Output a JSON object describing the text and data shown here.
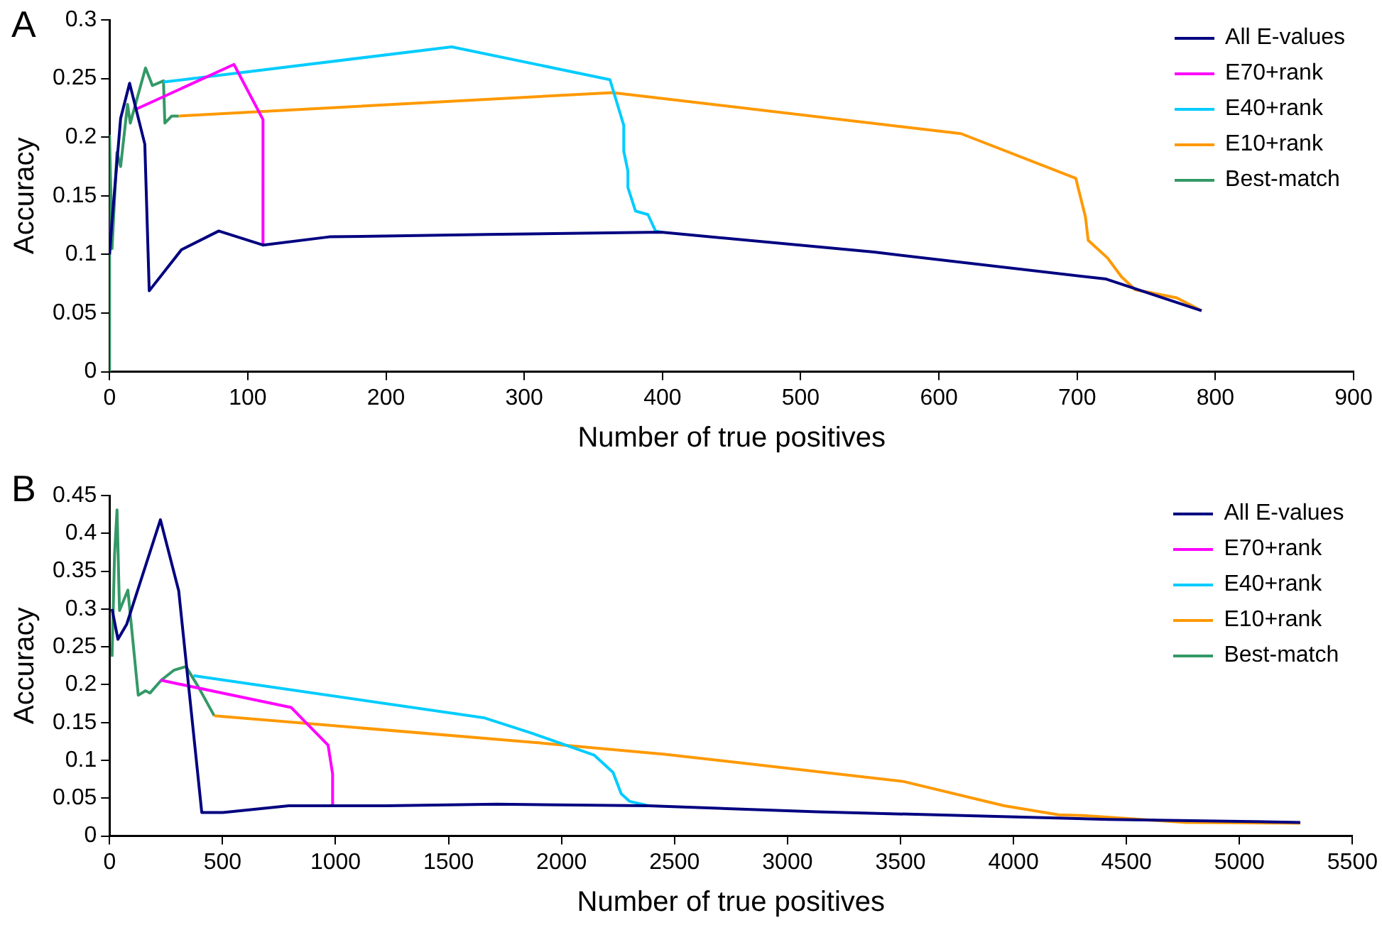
{
  "chart_data": [
    {
      "type": "line",
      "xlabel": "Number of true positives",
      "ylabel": "Accuracy",
      "annotations": [
        "A"
      ],
      "legend": "top right",
      "grid": false,
      "marker": "none",
      "xlim": [
        0,
        900
      ],
      "xticks": [
        0,
        100,
        200,
        300,
        400,
        500,
        600,
        700,
        800,
        900
      ],
      "ylim": [
        0,
        0.3
      ],
      "yticks": [
        0,
        0.05,
        0.1,
        0.15,
        0.2,
        0.25,
        0.3
      ],
      "series": [
        {
          "name": "All E-values",
          "color": "#000080",
          "x": [
            0,
            1.8,
            8,
            14.5,
            25.5,
            28.7,
            52,
            79,
            111,
            159,
            273,
            399,
            553,
            721,
            790
          ],
          "values": [
            0.1,
            0.129,
            0.216,
            0.246,
            0.194,
            0.069,
            0.104,
            0.12,
            0.108,
            0.115,
            0.117,
            0.119,
            0.102,
            0.079,
            0.052
          ]
        },
        {
          "name": "E70+rank",
          "color": "#ff00ff",
          "x": [
            19.5,
            90,
            111,
            111
          ],
          "values": [
            0.224,
            0.262,
            0.215,
            0.108
          ]
        },
        {
          "name": "E40+rank",
          "color": "#00ccff",
          "x": [
            39,
            247.5,
            362,
            372,
            372,
            375,
            375,
            380.5,
            389.5,
            395,
            399
          ],
          "values": [
            0.247,
            0.277,
            0.249,
            0.21,
            0.188,
            0.171,
            0.157,
            0.137,
            0.134,
            0.12,
            0.119
          ]
        },
        {
          "name": "E10+rank",
          "color": "#ff9900",
          "x": [
            50,
            364,
            616,
            699,
            706,
            708,
            722,
            732,
            742,
            772,
            782,
            790
          ],
          "values": [
            0.218,
            0.238,
            0.203,
            0.165,
            0.132,
            0.112,
            0.097,
            0.081,
            0.07,
            0.063,
            0.057,
            0.052
          ]
        },
        {
          "name": "Best-match",
          "color": "#339966",
          "x": [
            0,
            0,
            1.8,
            5.3,
            8,
            13,
            15,
            26,
            31,
            39,
            40,
            45,
            50
          ],
          "values": [
            0,
            0.201,
            0.105,
            0.187,
            0.175,
            0.228,
            0.212,
            0.259,
            0.244,
            0.248,
            0.212,
            0.218,
            0.218
          ]
        }
      ]
    },
    {
      "type": "line",
      "xlabel": "Number of true positives",
      "ylabel": "Accuracy",
      "annotations": [
        "B"
      ],
      "legend": "top right",
      "grid": false,
      "marker": "none",
      "xlim": [
        0,
        5500
      ],
      "xticks": [
        0,
        500,
        1000,
        1500,
        2000,
        2500,
        3000,
        3500,
        4000,
        4500,
        5000,
        5500
      ],
      "ylim": [
        0,
        0.45
      ],
      "yticks": [
        0,
        0.05,
        0.1,
        0.15,
        0.2,
        0.25,
        0.3,
        0.35,
        0.4,
        0.45
      ],
      "series": [
        {
          "name": "All E-values",
          "color": "#000080",
          "x": [
            11,
            37,
            76,
            225,
            306,
            408,
            502,
            793,
            1223,
            1714,
            2385,
            3130,
            4416,
            5269
          ],
          "values": [
            0.3,
            0.26,
            0.28,
            0.418,
            0.324,
            0.031,
            0.031,
            0.04,
            0.04,
            0.042,
            0.04,
            0.032,
            0.022,
            0.018
          ]
        },
        {
          "name": "E70+rank",
          "color": "#ff00ff",
          "x": [
            225,
            803,
            967,
            987,
            987
          ],
          "values": [
            0.206,
            0.17,
            0.12,
            0.082,
            0.04
          ]
        },
        {
          "name": "E40+rank",
          "color": "#00ccff",
          "x": [
            371,
            1660,
            1867,
            2144,
            2228,
            2264,
            2300,
            2385
          ],
          "values": [
            0.212,
            0.156,
            0.136,
            0.107,
            0.084,
            0.056,
            0.046,
            0.04
          ]
        },
        {
          "name": "E10+rank",
          "color": "#ff9900",
          "x": [
            463,
            1867,
            2457,
            3514,
            3959,
            4200,
            4308,
            4764,
            5269
          ],
          "values": [
            0.159,
            0.124,
            0.108,
            0.072,
            0.04,
            0.028,
            0.027,
            0.018,
            0.017
          ]
        },
        {
          "name": "Best-match",
          "color": "#339966",
          "x": [
            11,
            22,
            33,
            44,
            81,
            127,
            159,
            179,
            229,
            284,
            338,
            393,
            463
          ],
          "values": [
            0.237,
            0.371,
            0.431,
            0.298,
            0.325,
            0.186,
            0.192,
            0.189,
            0.206,
            0.219,
            0.224,
            0.197,
            0.159
          ]
        }
      ]
    }
  ]
}
